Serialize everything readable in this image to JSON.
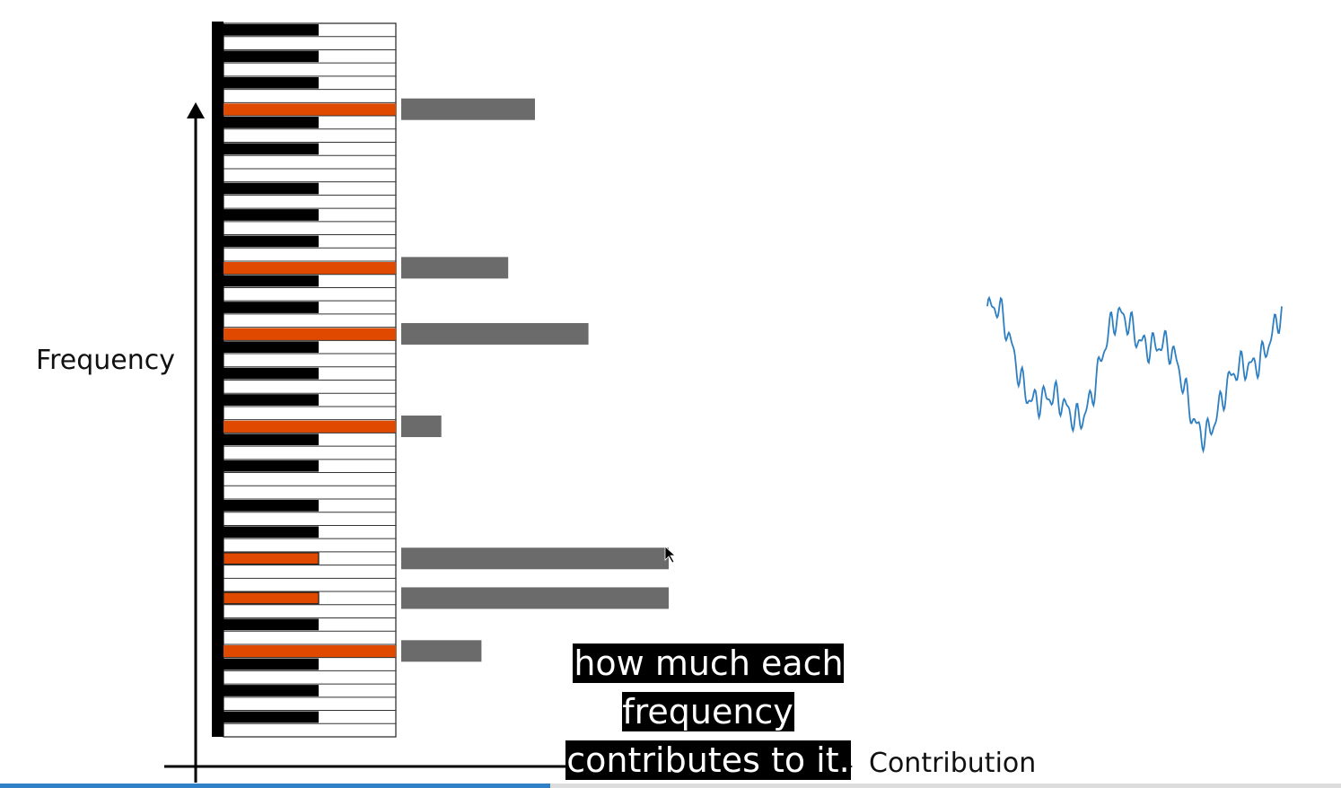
{
  "axes": {
    "y_label": "Frequency",
    "x_label": "Contribution"
  },
  "caption": {
    "line1": "how much each frequency",
    "line2": "contributes to it."
  },
  "colors": {
    "active_key": "#e04a00",
    "contribution_bar": "#6b6b6b",
    "waveform": "#2e7fc2",
    "black_key": "#000000"
  },
  "playback": {
    "progress": 0.41
  },
  "keyboard": {
    "keys": [
      {
        "type": "black",
        "active": false
      },
      {
        "type": "white",
        "active": false
      },
      {
        "type": "black",
        "active": false
      },
      {
        "type": "white",
        "active": false
      },
      {
        "type": "black",
        "active": false
      },
      {
        "type": "white",
        "active": false
      },
      {
        "type": "white",
        "active": true,
        "contribution": 0.5
      },
      {
        "type": "black",
        "active": false
      },
      {
        "type": "white",
        "active": false
      },
      {
        "type": "black",
        "active": false
      },
      {
        "type": "white",
        "active": false
      },
      {
        "type": "white",
        "active": false
      },
      {
        "type": "black",
        "active": false
      },
      {
        "type": "white",
        "active": false
      },
      {
        "type": "black",
        "active": false
      },
      {
        "type": "white",
        "active": false
      },
      {
        "type": "black",
        "active": false
      },
      {
        "type": "white",
        "active": false
      },
      {
        "type": "white",
        "active": true,
        "contribution": 0.4
      },
      {
        "type": "black",
        "active": false
      },
      {
        "type": "white",
        "active": false
      },
      {
        "type": "black",
        "active": false
      },
      {
        "type": "white",
        "active": false
      },
      {
        "type": "white",
        "active": true,
        "contribution": 0.7
      },
      {
        "type": "black",
        "active": false
      },
      {
        "type": "white",
        "active": false
      },
      {
        "type": "black",
        "active": false
      },
      {
        "type": "white",
        "active": false
      },
      {
        "type": "black",
        "active": false
      },
      {
        "type": "white",
        "active": false
      },
      {
        "type": "white",
        "active": true,
        "contribution": 0.15
      },
      {
        "type": "black",
        "active": false
      },
      {
        "type": "white",
        "active": false
      },
      {
        "type": "black",
        "active": false
      },
      {
        "type": "white",
        "active": false
      },
      {
        "type": "white",
        "active": false
      },
      {
        "type": "black",
        "active": false
      },
      {
        "type": "white",
        "active": false
      },
      {
        "type": "black",
        "active": false
      },
      {
        "type": "white",
        "active": false
      },
      {
        "type": "black",
        "active": true,
        "contribution": 1.0
      },
      {
        "type": "white",
        "active": false
      },
      {
        "type": "white",
        "active": false
      },
      {
        "type": "black",
        "active": true,
        "contribution": 1.0
      },
      {
        "type": "white",
        "active": false
      },
      {
        "type": "black",
        "active": false
      },
      {
        "type": "white",
        "active": false
      },
      {
        "type": "white",
        "active": true,
        "contribution": 0.3
      },
      {
        "type": "black",
        "active": false
      },
      {
        "type": "white",
        "active": false
      },
      {
        "type": "black",
        "active": false
      },
      {
        "type": "white",
        "active": false
      },
      {
        "type": "black",
        "active": false
      },
      {
        "type": "white",
        "active": false
      }
    ]
  }
}
